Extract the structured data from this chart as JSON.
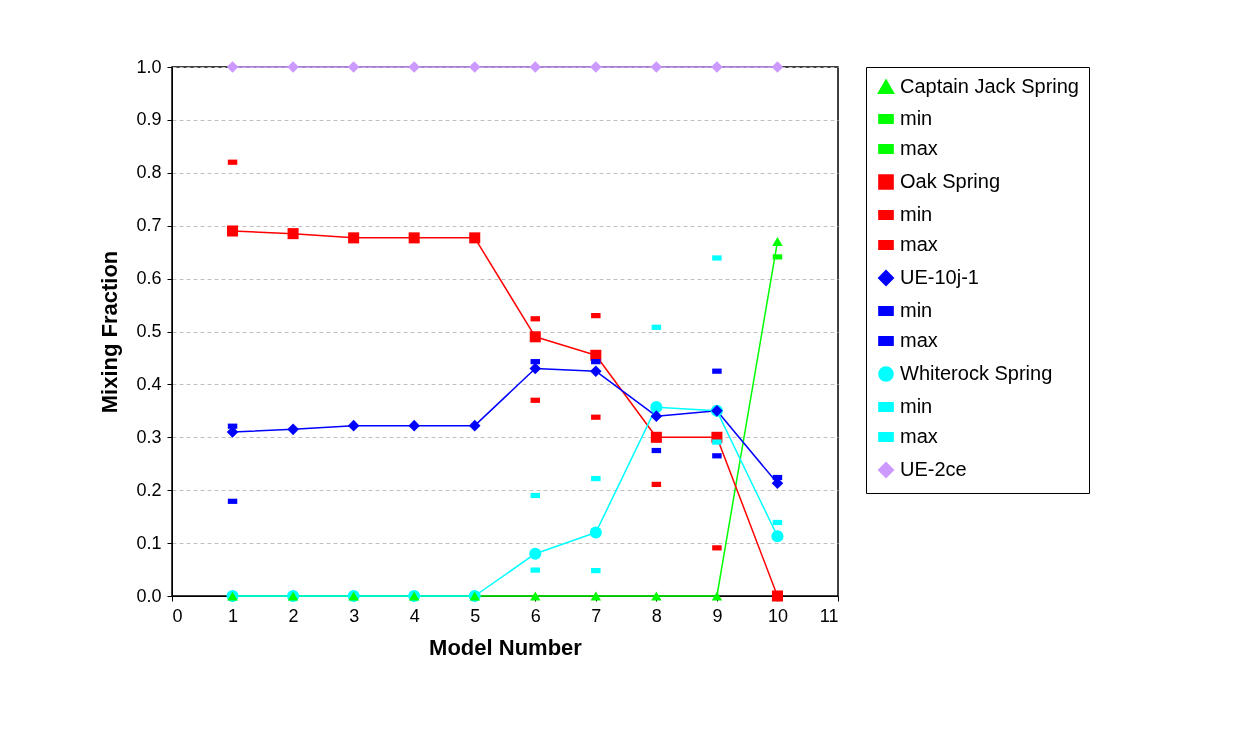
{
  "chart_data": {
    "type": "line",
    "xlabel": "Model Number",
    "ylabel": "Mixing Fraction",
    "x": [
      1,
      2,
      3,
      4,
      5,
      6,
      7,
      8,
      9,
      10
    ],
    "xlim": [
      0,
      11
    ],
    "xticks": [
      0,
      1,
      2,
      3,
      4,
      5,
      6,
      7,
      8,
      9,
      10,
      11
    ],
    "ylim": [
      0,
      1
    ],
    "yticks": [
      {
        "value": 0,
        "label": "0.0"
      },
      {
        "value": 0.1,
        "label": "0.1"
      },
      {
        "value": 0.2,
        "label": "0.2"
      },
      {
        "value": 0.3,
        "label": "0.3"
      },
      {
        "value": 0.4,
        "label": "0.4"
      },
      {
        "value": 0.5,
        "label": "0.5"
      },
      {
        "value": 0.6,
        "label": "0.6"
      },
      {
        "value": 0.7,
        "label": "0.7"
      },
      {
        "value": 0.8,
        "label": "0.8"
      },
      {
        "value": 0.9,
        "label": "0.9"
      },
      {
        "value": 1,
        "label": "1.0"
      }
    ],
    "grid": "y",
    "legend": "right",
    "series": [
      {
        "name": "Captain Jack Spring",
        "type": "line",
        "marker": "triangle",
        "color": "#00ff00",
        "values": [
          0,
          0,
          0,
          0,
          0,
          0,
          0,
          0,
          0,
          0.67
        ]
      },
      {
        "name": "min",
        "type": "scatter",
        "color": "#00ff00",
        "values": [
          null,
          null,
          null,
          null,
          null,
          null,
          null,
          null,
          null,
          0.641
        ]
      },
      {
        "name": "max",
        "type": "scatter",
        "color": "#00ff00",
        "values": [
          null,
          null,
          null,
          null,
          null,
          null,
          null,
          null,
          null,
          null
        ]
      },
      {
        "name": "Oak Spring",
        "type": "line",
        "marker": "square",
        "color": "#ff0000",
        "values": [
          0.69,
          0.685,
          0.677,
          0.677,
          0.677,
          0.49,
          0.455,
          0.3,
          0.3,
          0
        ]
      },
      {
        "name": "min",
        "type": "scatter",
        "color": "#ff0000",
        "values": [
          null,
          null,
          null,
          null,
          null,
          0.37,
          0.338,
          0.211,
          0.091,
          null
        ]
      },
      {
        "name": "max",
        "type": "scatter",
        "color": "#ff0000",
        "values": [
          0.82,
          null,
          null,
          null,
          null,
          0.524,
          0.53,
          null,
          null,
          null
        ]
      },
      {
        "name": "UE-10j-1",
        "type": "line",
        "marker": "diamond",
        "color": "#0000ff",
        "values": [
          0.31,
          0.315,
          0.322,
          0.322,
          0.322,
          0.43,
          0.425,
          0.34,
          0.35,
          0.213
        ]
      },
      {
        "name": "min",
        "type": "scatter",
        "color": "#0000ff",
        "values": [
          0.179,
          null,
          null,
          null,
          null,
          null,
          null,
          0.275,
          0.265,
          null
        ]
      },
      {
        "name": "max",
        "type": "scatter",
        "color": "#0000ff",
        "values": [
          0.321,
          null,
          null,
          null,
          null,
          0.443,
          0.443,
          null,
          0.425,
          0.224
        ]
      },
      {
        "name": "Whiterock Spring",
        "type": "line",
        "marker": "circle",
        "color": "#00ffff",
        "values": [
          0,
          0,
          0,
          0,
          0,
          0.08,
          0.12,
          0.357,
          0.35,
          0.113
        ]
      },
      {
        "name": "min",
        "type": "scatter",
        "color": "#00ffff",
        "values": [
          null,
          null,
          null,
          null,
          null,
          0.049,
          0.048,
          null,
          0.291,
          null
        ]
      },
      {
        "name": "max",
        "type": "scatter",
        "color": "#00ffff",
        "values": [
          null,
          null,
          null,
          null,
          null,
          0.19,
          0.222,
          0.508,
          0.639,
          0.139
        ]
      },
      {
        "name": "UE-2ce",
        "type": "line",
        "marker": "diamond",
        "color": "#cc99ff",
        "values": [
          1,
          1,
          1,
          1,
          1,
          1,
          1,
          1,
          1,
          1
        ]
      }
    ]
  }
}
